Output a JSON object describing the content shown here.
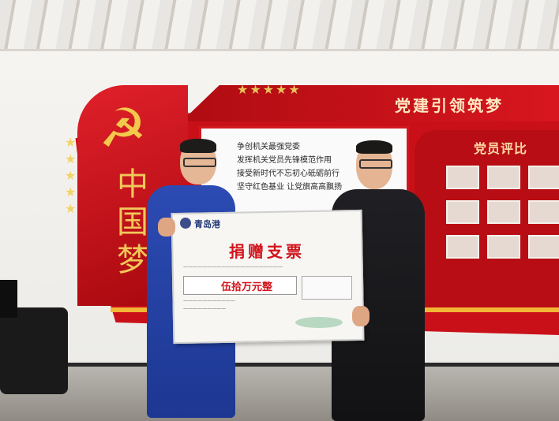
{
  "scene": {
    "colors": {
      "wall_red": "#c91018",
      "gold": "#f2b535",
      "uniform_blue": "#2c4bb3",
      "jacket_black": "#202024"
    },
    "wall_display": {
      "banner_title": "党建引领筑梦",
      "eval_board_title": "党员评比",
      "emblem_icon": "hammer-and-sickle-icon",
      "vertical_text": "中国梦",
      "slogan_lines": [
        "争创机关最强党委",
        "发挥机关党员先锋模范作用",
        "接受新时代不忘初心砥砺前行",
        "坚守红色基业 让党旗高高飘扬"
      ]
    },
    "cheque": {
      "company": "青岛港",
      "title": "捐赠支票",
      "amount": "伍拾万元整"
    }
  }
}
